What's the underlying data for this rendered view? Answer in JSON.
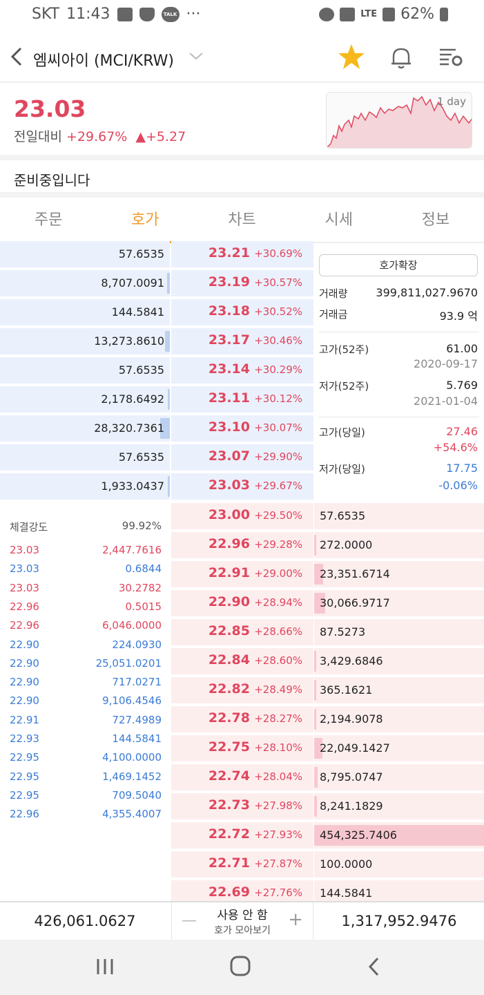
{
  "status_bar": {
    "carrier": "SKT",
    "time": "11:43",
    "battery": "62%",
    "network": "LTE",
    "talk_label": "TALK",
    "more": "···"
  },
  "header": {
    "title": "엠씨아이 (MCI/KRW)"
  },
  "summary": {
    "price": "23.03",
    "compare_label": "전일대비",
    "change_pct": "+29.67%",
    "change_amt": "▲+5.27",
    "chart_label": "1 day",
    "notice": "준비중입니다"
  },
  "tabs": [
    "주문",
    "호가",
    "차트",
    "시세",
    "정보"
  ],
  "asks": [
    {
      "qty": "57.6535",
      "price": "23.21",
      "pct": "+30.69%",
      "bar": 0.0
    },
    {
      "qty": "8,707.0091",
      "price": "23.19",
      "pct": "+30.57%",
      "bar": 0.019
    },
    {
      "qty": "144.5841",
      "price": "23.18",
      "pct": "+30.52%",
      "bar": 0.0
    },
    {
      "qty": "13,273.8610",
      "price": "23.17",
      "pct": "+30.46%",
      "bar": 0.029
    },
    {
      "qty": "57.6535",
      "price": "23.14",
      "pct": "+30.29%",
      "bar": 0.0
    },
    {
      "qty": "2,178.6492",
      "price": "23.11",
      "pct": "+30.12%",
      "bar": 0.005
    },
    {
      "qty": "28,320.7361",
      "price": "23.10",
      "pct": "+30.07%",
      "bar": 0.062
    },
    {
      "qty": "57.6535",
      "price": "23.07",
      "pct": "+29.90%",
      "bar": 0.0
    },
    {
      "qty": "1,933.0437",
      "price": "23.03",
      "pct": "+29.67%",
      "bar": 0.004
    }
  ],
  "bids": [
    {
      "qty": "57.6535",
      "price": "23.00",
      "pct": "+29.50%",
      "bar": 0.0
    },
    {
      "qty": "272.0000",
      "price": "22.96",
      "pct": "+29.28%",
      "bar": 0.001
    },
    {
      "qty": "23,351.6714",
      "price": "22.91",
      "pct": "+29.00%",
      "bar": 0.051
    },
    {
      "qty": "30,066.9717",
      "price": "22.90",
      "pct": "+28.94%",
      "bar": 0.066
    },
    {
      "qty": "87.5273",
      "price": "22.85",
      "pct": "+28.66%",
      "bar": 0.0
    },
    {
      "qty": "3,429.6846",
      "price": "22.84",
      "pct": "+28.60%",
      "bar": 0.008
    },
    {
      "qty": "365.1621",
      "price": "22.82",
      "pct": "+28.49%",
      "bar": 0.001
    },
    {
      "qty": "2,194.9078",
      "price": "22.78",
      "pct": "+28.27%",
      "bar": 0.005
    },
    {
      "qty": "22,049.1427",
      "price": "22.75",
      "pct": "+28.10%",
      "bar": 0.049
    },
    {
      "qty": "8,795.0747",
      "price": "22.74",
      "pct": "+28.04%",
      "bar": 0.019
    },
    {
      "qty": "8,241.1829",
      "price": "22.73",
      "pct": "+27.98%",
      "bar": 0.018
    },
    {
      "qty": "454,325.7406",
      "price": "22.72",
      "pct": "+27.93%",
      "bar": 1.0
    },
    {
      "qty": "100.0000",
      "price": "22.71",
      "pct": "+27.87%",
      "bar": 0.0
    },
    {
      "qty": "144.5841",
      "price": "22.69",
      "pct": "+27.76%",
      "bar": 0.0
    }
  ],
  "info": {
    "expand_label": "호가확장",
    "volume_label": "거래량",
    "volume": "399,811,027.9670",
    "amount_label": "거래금",
    "amount": "93.9 억",
    "high52_label": "고가(52주)",
    "high52": "61.00",
    "high52_date": "2020-09-17",
    "low52_label": "저가(52주)",
    "low52": "5.769",
    "low52_date": "2021-01-04",
    "high_day_label": "고가(당일)",
    "high_day": "27.46",
    "high_day_pct": "+54.6%",
    "low_day_label": "저가(당일)",
    "low_day": "17.75",
    "low_day_pct": "-0.06%"
  },
  "trades": {
    "strength_label": "체결강도",
    "strength": "99.92%",
    "rows": [
      {
        "price": "23.03",
        "qty": "2,447.7616",
        "side": "buy"
      },
      {
        "price": "23.03",
        "qty": "0.6844",
        "side": "sell"
      },
      {
        "price": "23.03",
        "qty": "30.2782",
        "side": "buy"
      },
      {
        "price": "22.96",
        "qty": "0.5015",
        "side": "buy"
      },
      {
        "price": "22.96",
        "qty": "6,046.0000",
        "side": "buy"
      },
      {
        "price": "22.90",
        "qty": "224.0930",
        "side": "sell"
      },
      {
        "price": "22.90",
        "qty": "25,051.0201",
        "side": "sell"
      },
      {
        "price": "22.90",
        "qty": "717.0271",
        "side": "sell"
      },
      {
        "price": "22.90",
        "qty": "9,106.4546",
        "side": "sell"
      },
      {
        "price": "22.91",
        "qty": "727.4989",
        "side": "sell"
      },
      {
        "price": "22.93",
        "qty": "144.5841",
        "side": "sell"
      },
      {
        "price": "22.95",
        "qty": "4,100.0000",
        "side": "sell"
      },
      {
        "price": "22.95",
        "qty": "1,469.1452",
        "side": "sell"
      },
      {
        "price": "22.95",
        "qty": "709.5040",
        "side": "sell"
      },
      {
        "price": "22.96",
        "qty": "4,355.4007",
        "side": "sell"
      }
    ]
  },
  "bottom": {
    "ask_total": "426,061.0627",
    "bid_total": "1,317,952.9476",
    "grouping_main": "사용 안 함",
    "grouping_sub": "호가 모아보기",
    "minus": "—",
    "plus": "+"
  },
  "colors": {
    "up": "#e0465e",
    "down": "#3a7bd5",
    "accent": "#f39a2b",
    "ask_bg": "#eaf1fc",
    "bid_bg": "#fdeeee"
  }
}
